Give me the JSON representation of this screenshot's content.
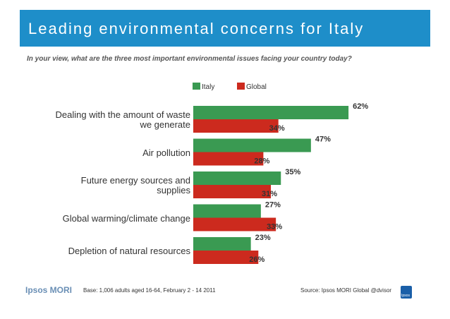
{
  "header": {
    "title": "Leading environmental concerns for Italy",
    "subtitle": "In your view, what are the three most important environmental issues facing your country today?"
  },
  "legend": [
    {
      "label": "Italy",
      "color": "#3a9a52"
    },
    {
      "label": "Global",
      "color": "#cc2a1e"
    }
  ],
  "chart_data": {
    "type": "bar",
    "orientation": "horizontal",
    "categories": [
      "Dealing with the amount of waste we generate",
      "Air pollution",
      "Future energy sources and supplies",
      "Global warming/climate change",
      "Depletion of natural resources"
    ],
    "category_lines": [
      [
        "Dealing with the amount of waste",
        "we generate"
      ],
      [
        "Air pollution"
      ],
      [
        "Future energy sources and",
        "supplies"
      ],
      [
        "Global warming/climate change"
      ],
      [
        "Depletion of natural resources"
      ]
    ],
    "series": [
      {
        "name": "Italy",
        "values": [
          62,
          47,
          35,
          27,
          23
        ],
        "labels": [
          "62%",
          "47%",
          "35%",
          "27%",
          "23%"
        ],
        "color": "#3a9a52"
      },
      {
        "name": "Global",
        "values": [
          34,
          28,
          31,
          33,
          26
        ],
        "labels": [
          "34%",
          "28%",
          "31%",
          "33%",
          "26%"
        ],
        "color": "#cc2a1e"
      }
    ],
    "xlim": [
      0,
      100
    ],
    "grid": false,
    "legend_position": "top"
  },
  "footer": {
    "logo": "Ipsos MORI",
    "base": "Base: 1,006 adults aged 16-64, February 2 - 14 2011",
    "source": "Source: Ipsos MORI Global @dvisor",
    "badge": "Ipsos"
  }
}
